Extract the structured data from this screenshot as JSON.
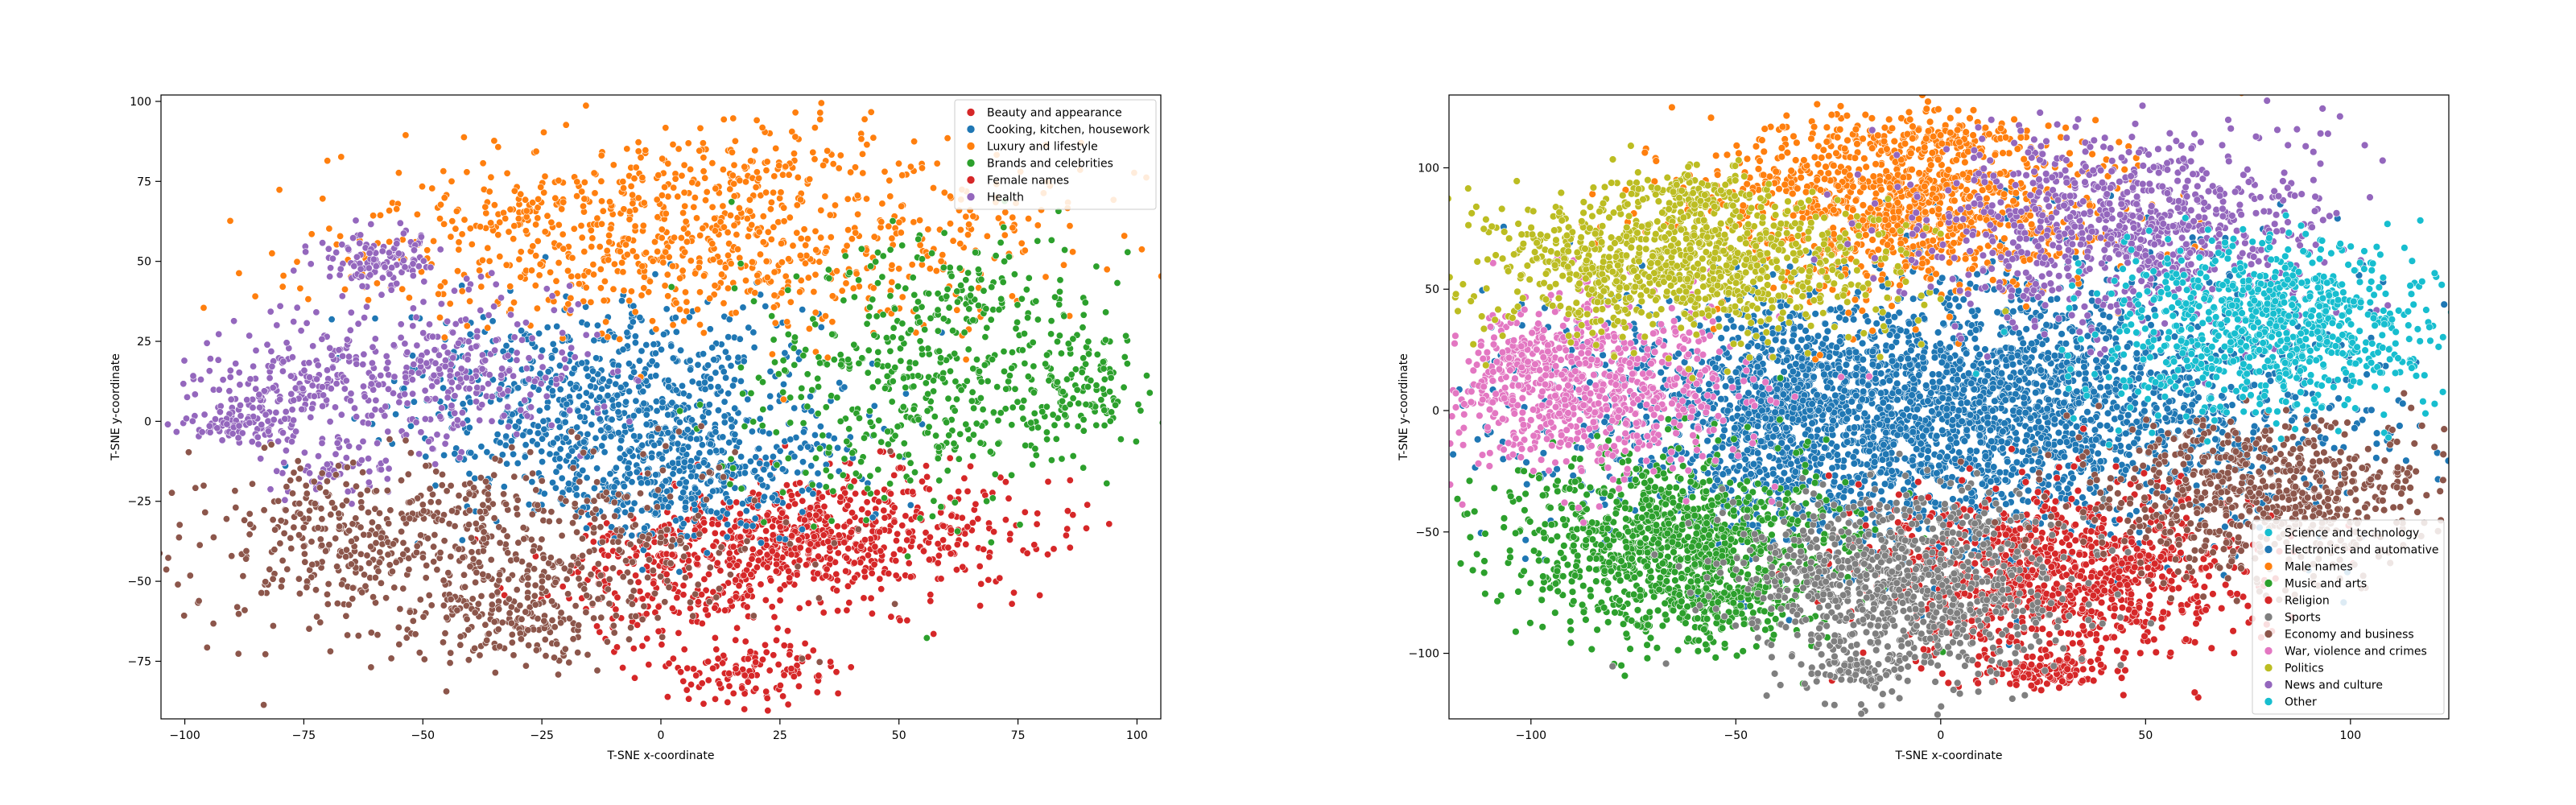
{
  "chart_data": [
    {
      "type": "scatter",
      "title": "",
      "xlabel": "T-SNE x-coordinate",
      "ylabel": "T-SNE y-coordinate",
      "xlim": [
        -105,
        105
      ],
      "ylim": [
        -93,
        102
      ],
      "xticks": [
        -100,
        -75,
        -50,
        -25,
        0,
        25,
        50,
        75,
        100
      ],
      "yticks": [
        -75,
        -50,
        -25,
        0,
        25,
        50,
        75,
        100
      ],
      "legend_position": "top-right",
      "series": [
        {
          "name": "Beauty and appearance",
          "color": "#d62728",
          "clusters": [
            [
              38,
              -35,
              22,
              10,
              520
            ],
            [
              5,
              -48,
              15,
              12,
              250
            ],
            [
              20,
              -78,
              8,
              5,
              120
            ],
            [
              28,
              -38,
              10,
              6,
              150
            ]
          ]
        },
        {
          "name": "Cooking, kitchen, housework",
          "color": "#1f77b4",
          "clusters": [
            [
              -10,
              5,
              22,
              16,
              820
            ],
            [
              12,
              -15,
              14,
              10,
              200
            ],
            [
              -5,
              -25,
              10,
              6,
              100
            ]
          ]
        },
        {
          "name": "Luxury and lifestyle",
          "color": "#ff7f0e",
          "clusters": [
            [
              10,
              55,
              38,
              14,
              750
            ],
            [
              10,
              78,
              22,
              8,
              150
            ],
            [
              -30,
              65,
              8,
              5,
              40
            ]
          ]
        },
        {
          "name": "Brands and celebrities",
          "color": "#2ca02c",
          "clusters": [
            [
              55,
              10,
              20,
              20,
              450
            ],
            [
              88,
              10,
              7,
              7,
              120
            ],
            [
              65,
              40,
              12,
              8,
              80
            ]
          ]
        },
        {
          "name": "Female names",
          "color": "#d62728",
          "clusters": []
        },
        {
          "name": "Health",
          "color": "#9467bd",
          "clusters": [
            [
              -50,
              15,
              18,
              12,
              400
            ],
            [
              -80,
              10,
              8,
              6,
              100
            ],
            [
              -88,
              -2,
              5,
              3,
              80
            ],
            [
              -60,
              50,
              6,
              5,
              120
            ],
            [
              -70,
              -15,
              8,
              5,
              60
            ]
          ]
        },
        {
          "name": "",
          "color": "#8c564b",
          "clusters": [
            [
              -40,
              -40,
              30,
              15,
              700
            ],
            [
              -28,
              -65,
              10,
              6,
              120
            ],
            [
              -72,
              -35,
              6,
              8,
              60
            ]
          ]
        }
      ]
    },
    {
      "type": "scatter",
      "title": "",
      "xlabel": "T-SNE x-coordinate",
      "ylabel": "T-SNE y-coordinate",
      "xlim": [
        -120,
        124
      ],
      "ylim": [
        -127,
        130
      ],
      "xticks": [
        -100,
        -50,
        0,
        50,
        100
      ],
      "yticks": [
        -100,
        -50,
        0,
        50,
        100
      ],
      "legend_position": "lower-right",
      "series": [
        {
          "name": "Science and technology",
          "color": "#17becf",
          "clusters": []
        },
        {
          "name": "Electronics and automative",
          "color": "#1f77b4",
          "clusters": [
            [
              0,
              0,
              45,
              28,
              3200
            ],
            [
              -40,
              0,
              10,
              18,
              300
            ]
          ]
        },
        {
          "name": "Male names",
          "color": "#ff7f0e",
          "clusters": [
            [
              -10,
              85,
              25,
              18,
              1100
            ],
            [
              0,
              112,
              10,
              4,
              100
            ]
          ]
        },
        {
          "name": "Music and arts",
          "color": "#2ca02c",
          "clusters": [
            [
              -65,
              -55,
              20,
              20,
              1100
            ],
            [
              -55,
              -80,
              8,
              6,
              120
            ]
          ]
        },
        {
          "name": "Religion",
          "color": "#d62728",
          "clusters": [
            [
              28,
              -68,
              22,
              18,
              1000
            ],
            [
              25,
              -108,
              8,
              3,
              120
            ]
          ]
        },
        {
          "name": "Sports",
          "color": "#7f7f7f",
          "clusters": [
            [
              -10,
              -72,
              20,
              20,
              1000
            ],
            [
              -22,
              -108,
              5,
              3,
              60
            ]
          ]
        },
        {
          "name": "Economy and business",
          "color": "#8c564b",
          "clusters": [
            [
              80,
              -35,
              22,
              16,
              700
            ]
          ]
        },
        {
          "name": "War, violence and crimes",
          "color": "#e377c2",
          "clusters": [
            [
              -85,
              10,
              18,
              18,
              800
            ],
            [
              -103,
              22,
              4,
              7,
              60
            ]
          ]
        },
        {
          "name": "Politics",
          "color": "#bcbd22",
          "clusters": [
            [
              -65,
              60,
              25,
              15,
              1000
            ],
            [
              -60,
              90,
              8,
              6,
              100
            ]
          ]
        },
        {
          "name": "News and culture",
          "color": "#9467bd",
          "clusters": [
            [
              45,
              75,
              25,
              20,
              900
            ]
          ]
        },
        {
          "name": "Other",
          "color": "#17becf",
          "clusters": [
            [
              80,
              35,
              20,
              18,
              900
            ]
          ]
        }
      ]
    }
  ]
}
